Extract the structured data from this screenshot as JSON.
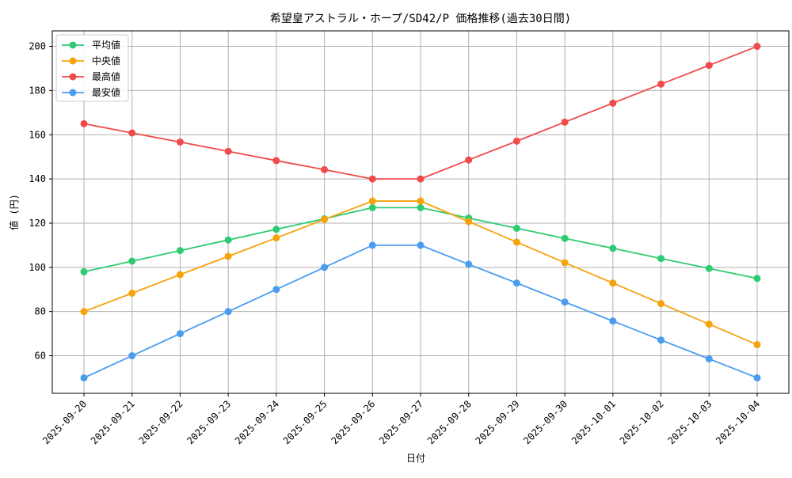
{
  "chart_data": {
    "type": "line",
    "title": "希望皇アストラル・ホープ/SD42/P 価格推移(過去30日間)",
    "xlabel": "日付",
    "ylabel": "値 (円)",
    "categories": [
      "2025-09-20",
      "2025-09-21",
      "2025-09-22",
      "2025-09-23",
      "2025-09-24",
      "2025-09-25",
      "2025-09-26",
      "2025-09-27",
      "2025-09-28",
      "2025-09-29",
      "2025-09-30",
      "2025-10-01",
      "2025-10-02",
      "2025-10-03",
      "2025-10-04"
    ],
    "ylim": [
      43,
      207
    ],
    "yticks": [
      60,
      80,
      100,
      120,
      140,
      160,
      180,
      200
    ],
    "grid": true,
    "legend_position": "top-left",
    "series": [
      {
        "name": "平均値",
        "color": "#2ecc71",
        "values": [
          98,
          102.8,
          107.6,
          112.4,
          117.2,
          122,
          127,
          127,
          122.3,
          117.7,
          113.1,
          108.6,
          104,
          99.5,
          95
        ]
      },
      {
        "name": "中央値",
        "color": "#f5a30c",
        "values": [
          80,
          88.3,
          96.7,
          105,
          113.3,
          121.7,
          130,
          130,
          120.7,
          111.4,
          102.1,
          92.9,
          83.6,
          74.3,
          65
        ]
      },
      {
        "name": "最高値",
        "color": "#f04a4a",
        "values": [
          165,
          160.8,
          156.7,
          152.5,
          148.3,
          144.2,
          140,
          140,
          148.6,
          157.1,
          165.7,
          174.3,
          182.9,
          191.4,
          200
        ]
      },
      {
        "name": "最安値",
        "color": "#4a9cf0",
        "values": [
          50,
          60,
          70,
          80,
          90,
          100,
          110,
          110,
          101.4,
          92.9,
          84.3,
          75.7,
          67.1,
          58.6,
          50
        ]
      }
    ]
  }
}
